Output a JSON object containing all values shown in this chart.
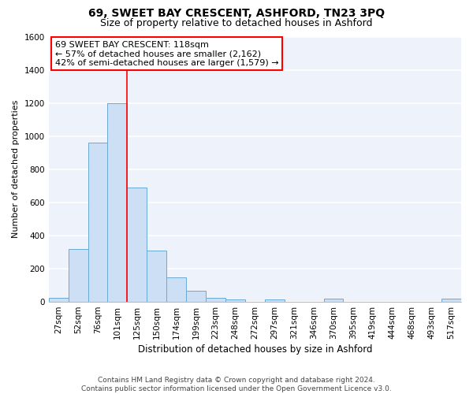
{
  "title1": "69, SWEET BAY CRESCENT, ASHFORD, TN23 3PQ",
  "title2": "Size of property relative to detached houses in Ashford",
  "xlabel": "Distribution of detached houses by size in Ashford",
  "ylabel": "Number of detached properties",
  "categories": [
    "27sqm",
    "52sqm",
    "76sqm",
    "101sqm",
    "125sqm",
    "150sqm",
    "174sqm",
    "199sqm",
    "223sqm",
    "248sqm",
    "272sqm",
    "297sqm",
    "321sqm",
    "346sqm",
    "370sqm",
    "395sqm",
    "419sqm",
    "444sqm",
    "468sqm",
    "493sqm",
    "517sqm"
  ],
  "values": [
    25,
    320,
    960,
    1200,
    690,
    310,
    150,
    65,
    25,
    15,
    0,
    15,
    0,
    0,
    20,
    0,
    0,
    0,
    0,
    0,
    20
  ],
  "bar_color": "#ccdff5",
  "bar_edge_color": "#6aaad4",
  "ylim": [
    0,
    1600
  ],
  "yticks": [
    0,
    200,
    400,
    600,
    800,
    1000,
    1200,
    1400,
    1600
  ],
  "property_line_x": 3.5,
  "annotation_line1": "69 SWEET BAY CRESCENT: 118sqm",
  "annotation_line2": "← 57% of detached houses are smaller (2,162)",
  "annotation_line3": "42% of semi-detached houses are larger (1,579) →",
  "footer": "Contains HM Land Registry data © Crown copyright and database right 2024.\nContains public sector information licensed under the Open Government Licence v3.0.",
  "background_color": "#eef2fa",
  "grid_color": "#ffffff",
  "title1_fontsize": 10,
  "title2_fontsize": 9,
  "xlabel_fontsize": 8.5,
  "ylabel_fontsize": 8,
  "tick_fontsize": 7.5,
  "footer_fontsize": 6.5,
  "annot_fontsize": 8
}
